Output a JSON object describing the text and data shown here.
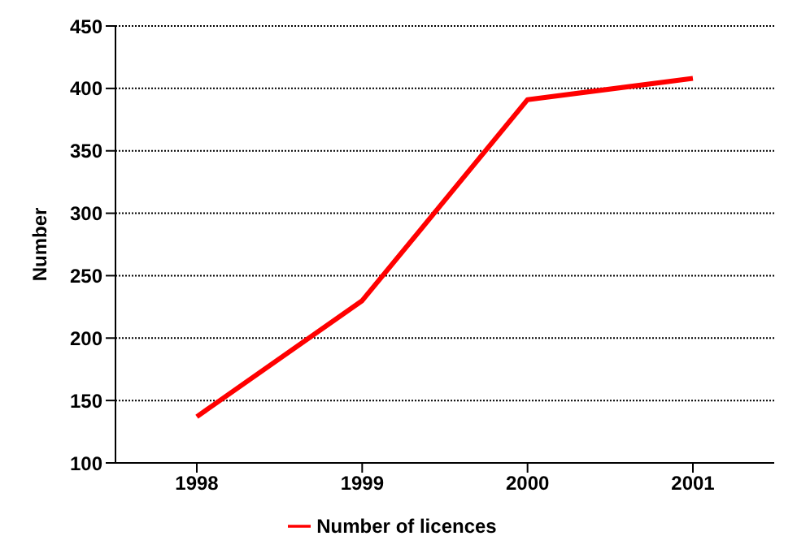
{
  "chart_data": {
    "type": "line",
    "ylabel": "Number",
    "categories": [
      "1998",
      "1999",
      "2000",
      "2001"
    ],
    "series": [
      {
        "name": "Number of licences",
        "color": "#ff0000",
        "values": [
          137,
          230,
          391,
          408
        ]
      }
    ],
    "ylim": [
      100,
      450
    ],
    "yticks": [
      100,
      150,
      200,
      250,
      300,
      350,
      400,
      450
    ],
    "grid": "y",
    "legend": "bottom",
    "marker": "none",
    "line_style": "solid"
  }
}
